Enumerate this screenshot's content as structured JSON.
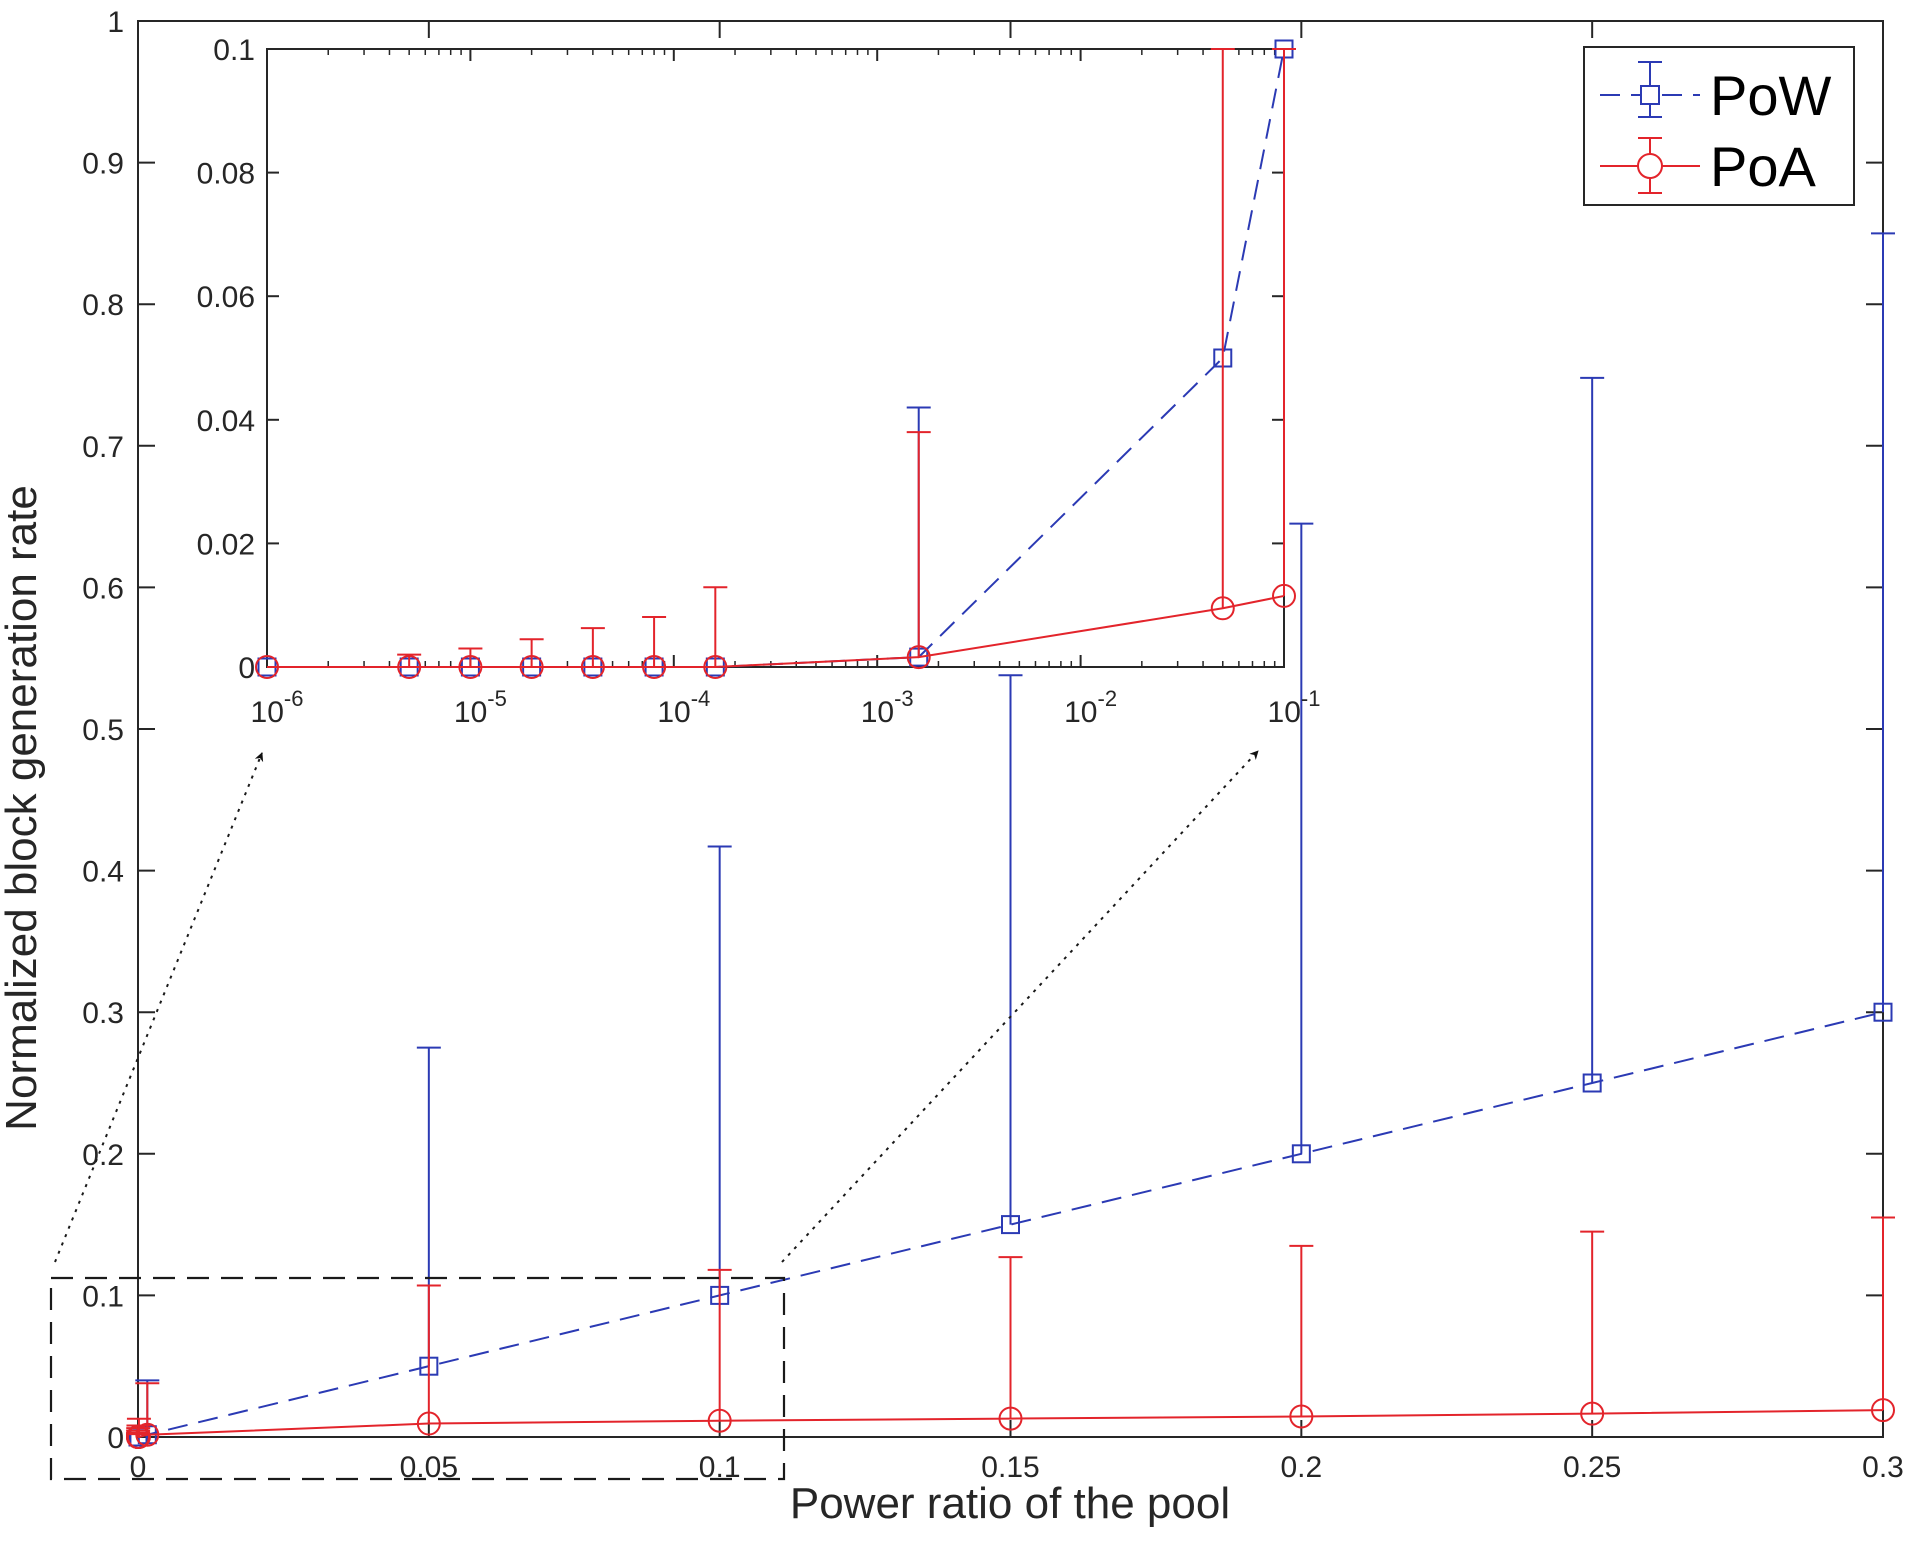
{
  "chart_data": [
    {
      "type": "line",
      "role": "main",
      "xlabel": "Power ratio of the pool",
      "ylabel": "Normalized block generation rate",
      "xlim": [
        0,
        0.3
      ],
      "ylim": [
        0,
        1
      ],
      "xticks": [
        0,
        0.05,
        0.1,
        0.15,
        0.2,
        0.25,
        0.3
      ],
      "xtick_labels": [
        "0",
        "0.05",
        "0.1",
        "0.15",
        "0.2",
        "0.25",
        "0.3"
      ],
      "yticks": [
        0,
        0.1,
        0.2,
        0.3,
        0.4,
        0.5,
        0.6,
        0.7,
        0.8,
        0.9,
        1
      ],
      "ytick_labels": [
        "0",
        "0.1",
        "0.2",
        "0.3",
        "0.4",
        "0.5",
        "0.6",
        "0.7",
        "0.8",
        "0.9",
        "1"
      ],
      "legend_position": "top-right",
      "series": [
        {
          "name": "PoW",
          "color": "#2b3ab4",
          "line": "dashed",
          "marker": "square",
          "x": [
            1e-06,
            5e-06,
            1e-05,
            2e-05,
            4e-05,
            8e-05,
            0.00016,
            0.0016,
            0.05,
            0.1,
            0.15,
            0.2,
            0.25,
            0.3
          ],
          "y": [
            0,
            0,
            0,
            0,
            0,
            0,
            0,
            0.0016,
            0.05,
            0.1,
            0.15,
            0.2,
            0.25,
            0.3
          ],
          "err_high": [
            0,
            0,
            0,
            0,
            0,
            0,
            0,
            0.04,
            0.275,
            0.417,
            0.538,
            0.645,
            0.748,
            0.85
          ]
        },
        {
          "name": "PoA",
          "color": "#e3242b",
          "line": "solid",
          "marker": "circle",
          "x": [
            1e-06,
            5e-06,
            1e-05,
            2e-05,
            4e-05,
            8e-05,
            0.00016,
            0.0016,
            0.05,
            0.1,
            0.15,
            0.2,
            0.25,
            0.3
          ],
          "y": [
            0,
            0,
            0,
            0,
            0,
            0,
            0,
            0.0016,
            0.0095,
            0.0115,
            0.013,
            0.0145,
            0.0165,
            0.019
          ],
          "err_high": [
            0,
            0.002,
            0.003,
            0.0045,
            0.0063,
            0.0081,
            0.0129,
            0.038,
            0.107,
            0.118,
            0.127,
            0.135,
            0.145,
            0.155
          ]
        }
      ]
    },
    {
      "type": "line",
      "role": "inset",
      "xscale": "log",
      "xlim": [
        1e-06,
        0.1
      ],
      "ylim": [
        0,
        0.1
      ],
      "xtick_base": "10",
      "xticks": [
        1e-06,
        1e-05,
        0.0001,
        0.001,
        0.01,
        0.1
      ],
      "xtick_exponents": [
        "-6",
        "-5",
        "-4",
        "-3",
        "-2",
        "-1"
      ],
      "yticks": [
        0,
        0.02,
        0.04,
        0.06,
        0.08,
        0.1
      ],
      "ytick_labels": [
        "0",
        "0.02",
        "0.04",
        "0.06",
        "0.08",
        "0.1"
      ],
      "series": [
        {
          "name": "PoW",
          "x": [
            1e-06,
            5e-06,
            1e-05,
            2e-05,
            4e-05,
            8e-05,
            0.00016,
            0.0016,
            0.05,
            0.1
          ],
          "y": [
            0,
            0,
            0,
            0,
            0,
            0,
            0,
            0.0016,
            0.05,
            0.1
          ],
          "err_high": [
            0,
            0,
            0,
            0,
            0,
            0,
            0,
            0.042,
            0.05,
            0.1
          ]
        },
        {
          "name": "PoA",
          "x": [
            1e-06,
            5e-06,
            1e-05,
            2e-05,
            4e-05,
            8e-05,
            0.00016,
            0.0016,
            0.05,
            0.1
          ],
          "y": [
            0,
            0,
            0,
            0,
            0,
            0,
            0,
            0.0016,
            0.0095,
            0.0115
          ],
          "err_high": [
            0,
            0.002,
            0.003,
            0.0045,
            0.0063,
            0.0081,
            0.0129,
            0.038,
            0.1,
            0.1
          ]
        }
      ]
    }
  ]
}
